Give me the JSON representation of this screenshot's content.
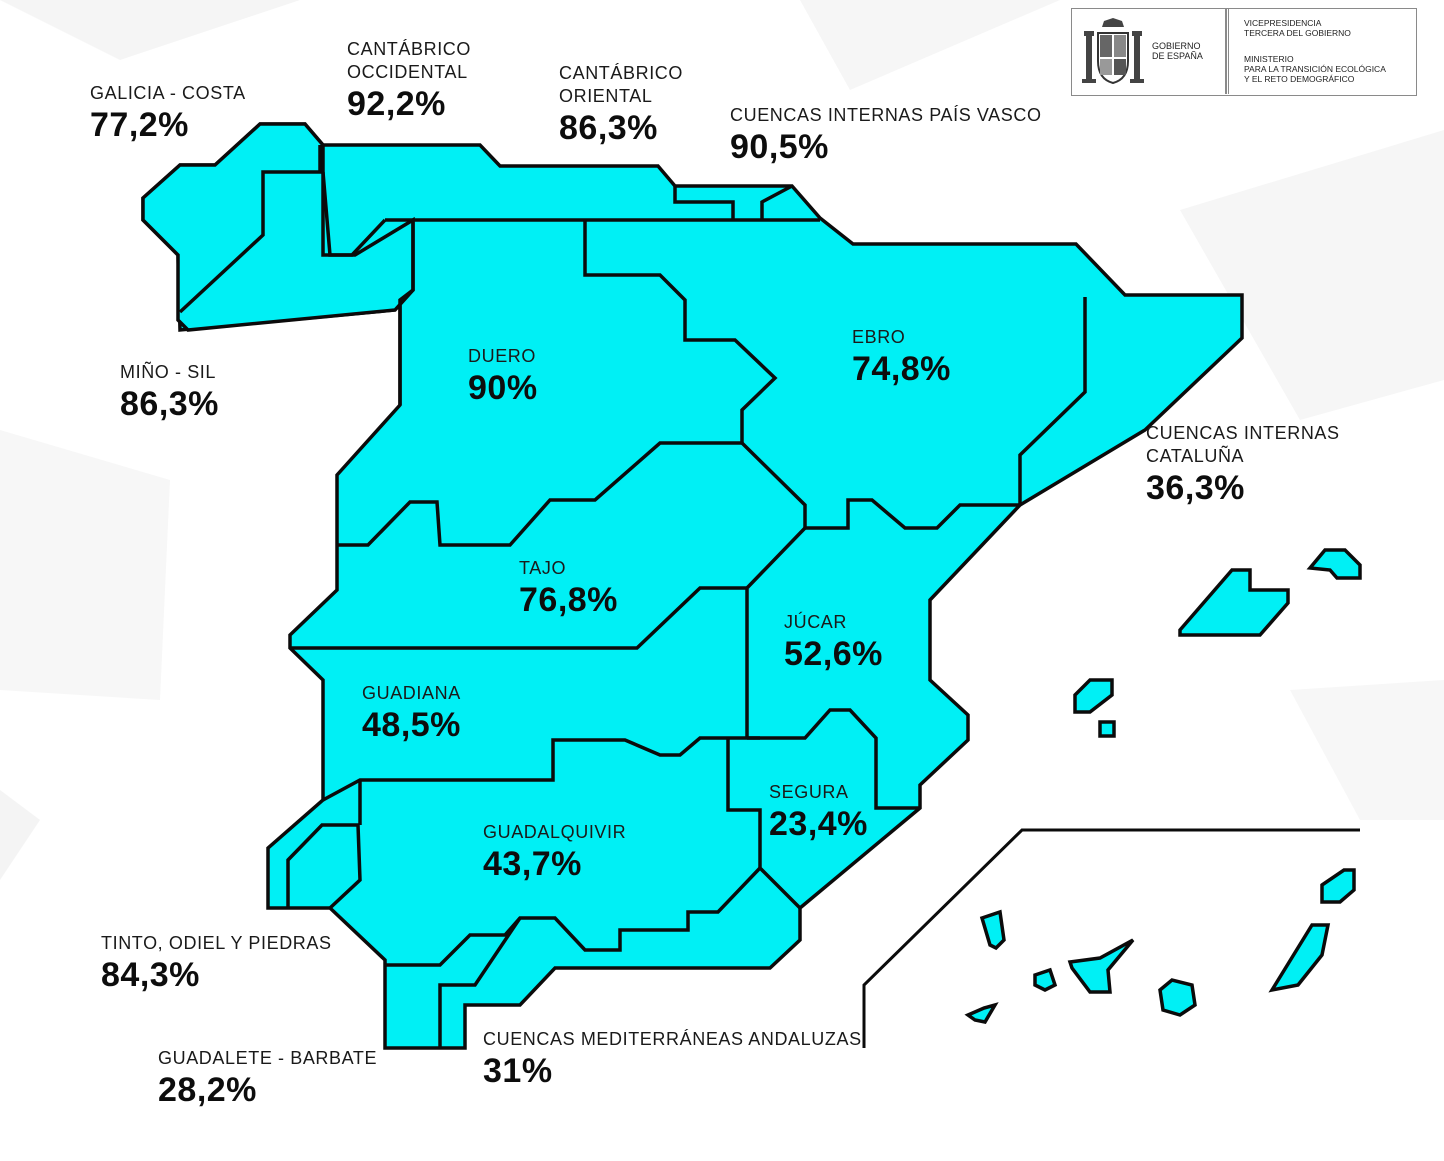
{
  "logo": {
    "government": "GOBIERNO\nDE ESPAÑA",
    "vicepresidency": "VICEPRESIDENCIA\nTERCERA DEL GOBIERNO",
    "ministry": "MINISTERIO\nPARA LA TRANSICIÓN ECOLÓGICA\nY EL RETO DEMOGRÁFICO"
  },
  "colors": {
    "basin_fill": "#00f0f5",
    "border": "#0b0b0b"
  },
  "basins": {
    "galicia_costa": {
      "name": "GALICIA - COSTA",
      "value": "77,2%"
    },
    "cantabrico_occidental": {
      "name": "CANTÁBRICO\nOCCIDENTAL",
      "value": "92,2%"
    },
    "cantabrico_oriental": {
      "name": "CANTÁBRICO\nORIENTAL",
      "value": "86,3%"
    },
    "pais_vasco": {
      "name": "CUENCAS INTERNAS PAÍS VASCO",
      "value": "90,5%"
    },
    "mino_sil": {
      "name": "MIÑO - SIL",
      "value": "86,3%"
    },
    "duero": {
      "name": "DUERO",
      "value": "90%"
    },
    "ebro": {
      "name": "EBRO",
      "value": "74,8%"
    },
    "cataluna": {
      "name": "CUENCAS INTERNAS\nCATALUÑA",
      "value": "36,3%"
    },
    "tajo": {
      "name": "TAJO",
      "value": "76,8%"
    },
    "jucar": {
      "name": "JÚCAR",
      "value": "52,6%"
    },
    "guadiana": {
      "name": "GUADIANA",
      "value": "48,5%"
    },
    "segura": {
      "name": "SEGURA",
      "value": "23,4%"
    },
    "guadalquivir": {
      "name": "GUADALQUIVIR",
      "value": "43,7%"
    },
    "tinto_odiel": {
      "name": "TINTO, ODIEL Y PIEDRAS",
      "value": "84,3%"
    },
    "guadalete": {
      "name": "GUADALETE - BARBATE",
      "value": "28,2%"
    },
    "mediterraneas": {
      "name": "CUENCAS MEDITERRÁNEAS ANDALUZAS",
      "value": "31%"
    }
  }
}
